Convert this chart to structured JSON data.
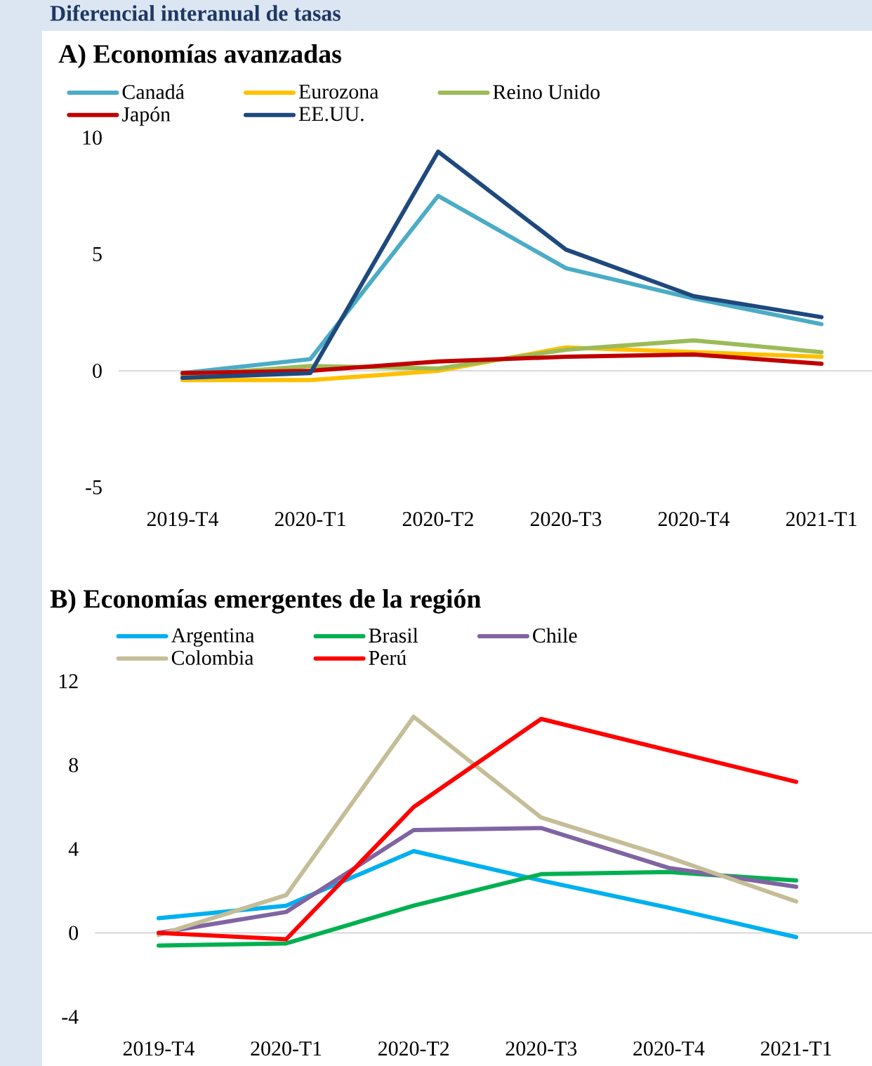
{
  "chart_data": [
    {
      "type": "line",
      "title": "Diferencial interanual de tasas",
      "subtitle": "A) Economías avanzadas",
      "categories": [
        "2019-T4",
        "2020-T1",
        "2020-T2",
        "2020-T3",
        "2020-T4",
        "2021-T1"
      ],
      "ylim": [
        -5,
        10
      ],
      "yticks": [
        -5,
        0,
        5,
        10
      ],
      "legend": "top",
      "series": [
        {
          "name": "Canadá",
          "color": "#4bacc6",
          "values": [
            -0.1,
            0.5,
            7.5,
            4.4,
            3.1,
            2.0
          ]
        },
        {
          "name": "Eurozona",
          "color": "#ffc000",
          "values": [
            -0.4,
            -0.4,
            0.0,
            1.0,
            0.8,
            0.6
          ]
        },
        {
          "name": "Reino Unido",
          "color": "#9bbb59",
          "values": [
            -0.2,
            0.2,
            0.1,
            0.9,
            1.3,
            0.8
          ]
        },
        {
          "name": "Japón",
          "color": "#c00000",
          "values": [
            -0.1,
            0.0,
            0.4,
            0.6,
            0.7,
            0.3
          ]
        },
        {
          "name": "EE.UU.",
          "color": "#1f497d",
          "values": [
            -0.3,
            -0.1,
            9.4,
            5.2,
            3.2,
            2.3
          ]
        }
      ]
    },
    {
      "type": "line",
      "title": "B) Economías emergentes de la región",
      "categories": [
        "2019-T4",
        "2020-T1",
        "2020-T2",
        "2020-T3",
        "2020-T4",
        "2021-T1"
      ],
      "ylim": [
        -4,
        12
      ],
      "yticks": [
        -4,
        0,
        4,
        8,
        12
      ],
      "legend": "top",
      "series": [
        {
          "name": "Argentina",
          "color": "#00b0f0",
          "values": [
            0.7,
            1.3,
            3.9,
            2.5,
            1.2,
            -0.2
          ]
        },
        {
          "name": "Brasil",
          "color": "#00b050",
          "values": [
            -0.6,
            -0.5,
            1.3,
            2.8,
            2.9,
            2.5
          ]
        },
        {
          "name": "Chile",
          "color": "#8064a2",
          "values": [
            0.0,
            1.0,
            4.9,
            5.0,
            3.1,
            2.2
          ]
        },
        {
          "name": "Colombia",
          "color": "#c4bd97",
          "values": [
            -0.1,
            1.8,
            10.3,
            5.5,
            3.6,
            1.5
          ]
        },
        {
          "name": "Perú",
          "color": "#ff0000",
          "values": [
            0.0,
            -0.3,
            6.0,
            10.2,
            8.7,
            7.2
          ]
        }
      ]
    }
  ]
}
